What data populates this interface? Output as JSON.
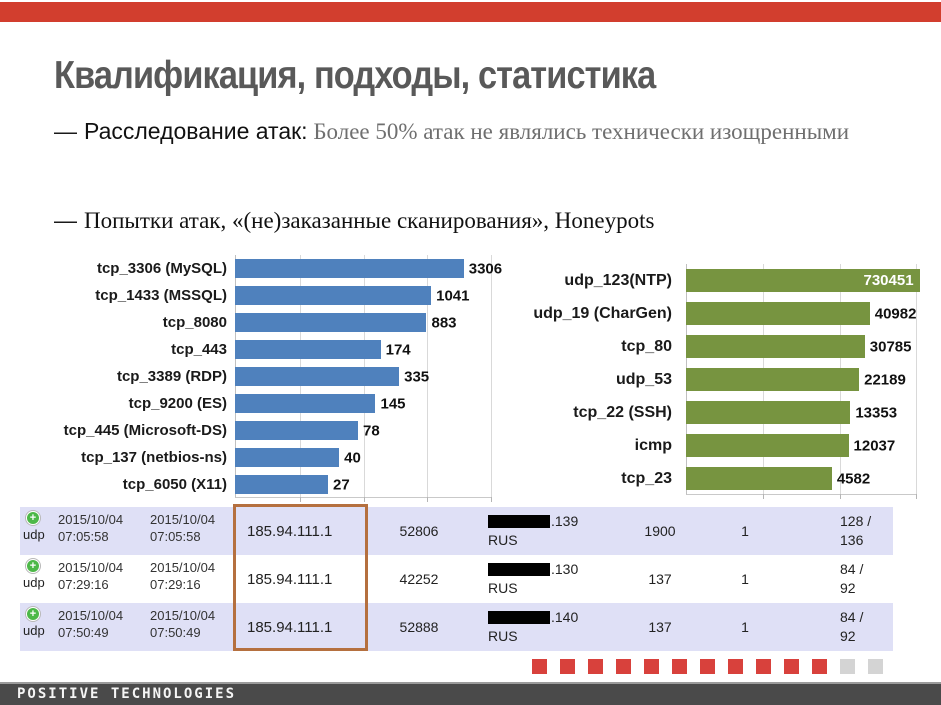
{
  "accent_color": "#d23e2e",
  "title": "Квалификация, подходы, статистика",
  "bullet1": {
    "marker": "—",
    "lead": "Расследование атак:",
    "tail": " Более 50% атак не являлись технически изощренными"
  },
  "bullet2": {
    "marker": "—",
    "text": "Попытки атак, «(не)заказанные сканирования», Honeypots"
  },
  "chart_data": [
    {
      "type": "bar",
      "orientation": "horizontal",
      "scale": "log10",
      "axis_max": 10000,
      "grid": true,
      "color": "#4f81bd",
      "categories": [
        "tcp_3306 (MySQL)",
        "tcp_1433 (MSSQL)",
        "tcp_8080",
        "tcp_443",
        "tcp_3389 (RDP)",
        "tcp_9200 (ES)",
        "tcp_445 (Microsoft-DS)",
        "tcp_137 (netbios-ns)",
        "tcp_6050 (X11)"
      ],
      "values": [
        3306,
        1041,
        883,
        174,
        335,
        145,
        78,
        40,
        27
      ],
      "value_labels": [
        "3306",
        "1041",
        "883",
        "174",
        "335",
        "145",
        "78",
        "40",
        "27"
      ],
      "title": "",
      "xlabel": "",
      "ylabel": ""
    },
    {
      "type": "bar",
      "orientation": "horizontal",
      "scale": "log10",
      "axis_max": 1000000,
      "grid": true,
      "color": "#779440",
      "first_value_inside": true,
      "categories": [
        "udp_123(NTP)",
        "udp_19 (CharGen)",
        "tcp_80",
        "udp_53",
        "tcp_22 (SSH)",
        "icmp",
        "tcp_23"
      ],
      "values": [
        730451,
        40982,
        30785,
        22189,
        13353,
        12037,
        4582
      ],
      "value_labels": [
        "730451",
        "40982",
        "30785",
        "22189",
        "13353",
        "12037",
        "4582"
      ],
      "title": "",
      "xlabel": "",
      "ylabel": ""
    }
  ],
  "table": {
    "highlight_border_color": "#b5703f",
    "row_alt_color": "#dfe0f6",
    "rows": [
      {
        "protocol": "udp",
        "start": "2015/10/04\n07:05:58",
        "end": "2015/10/04\n07:05:58",
        "src_ip": "185.94.111.1",
        "src_port": "52806",
        "dst_suffix": ".139",
        "country": "RUS",
        "dst_port": "1900",
        "count": "1",
        "bytes": "128 /\n136"
      },
      {
        "protocol": "udp",
        "start": "2015/10/04\n07:29:16",
        "end": "2015/10/04\n07:29:16",
        "src_ip": "185.94.111.1",
        "src_port": "42252",
        "dst_suffix": ".130",
        "country": "RUS",
        "dst_port": "137",
        "count": "1",
        "bytes": "84 /\n92"
      },
      {
        "protocol": "udp",
        "start": "2015/10/04\n07:50:49",
        "end": "2015/10/04\n07:50:49",
        "src_ip": "185.94.111.1",
        "src_port": "52888",
        "dst_suffix": ".140",
        "country": "RUS",
        "dst_port": "137",
        "count": "1",
        "bytes": "84 /\n92"
      }
    ]
  },
  "squares": {
    "red_count": 11,
    "gray_count": 2,
    "red_color": "#d8413c",
    "gray_color": "#d4d4d4"
  },
  "footer": {
    "brand": "POSITIVE TECHNOLOGIES"
  }
}
